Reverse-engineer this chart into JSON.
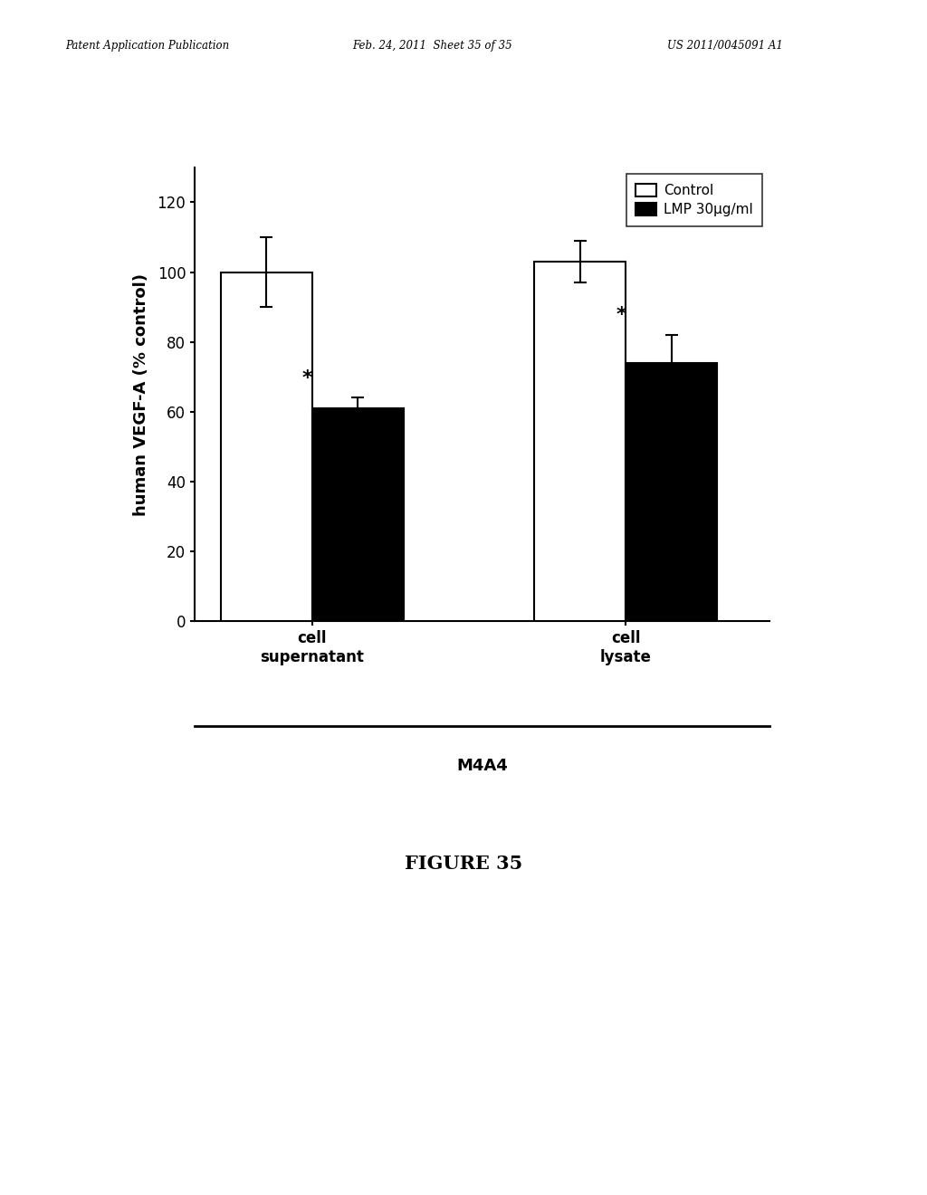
{
  "groups": [
    "cell\nsupernatant",
    "cell\nlysate"
  ],
  "control_values": [
    100,
    103
  ],
  "control_errors": [
    10,
    6
  ],
  "lmp_values": [
    61,
    74
  ],
  "lmp_errors": [
    3,
    8
  ],
  "control_color": "white",
  "lmp_color": "black",
  "bar_edgecolor": "black",
  "ylabel": "human VEGF-A (% control)",
  "ylim": [
    0,
    130
  ],
  "yticks": [
    0,
    20,
    40,
    60,
    80,
    100,
    120
  ],
  "legend_labels": [
    "Control",
    "LMP 30µg/ml"
  ],
  "group_label": "M4A4",
  "star_annotation": "*",
  "bar_width": 0.35,
  "figure_width": 10.24,
  "figure_height": 13.2,
  "figure_caption": "FIGURE 35",
  "header_left": "Patent Application Publication",
  "header_mid": "Feb. 24, 2011  Sheet 35 of 35",
  "header_right": "US 2011/0045091 A1"
}
